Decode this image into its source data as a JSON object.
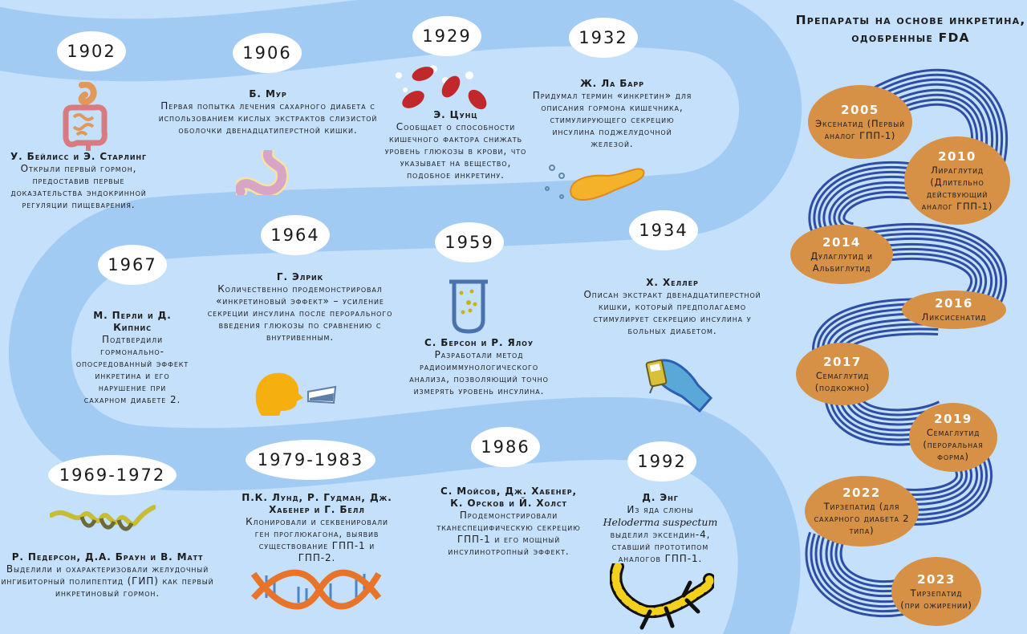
{
  "colors": {
    "background": "#c5e0fb",
    "band": "#a2cbf4",
    "year_bubble": "#ffffff",
    "drug_bubble": "#d69146",
    "stripes": "#2e4ea3"
  },
  "events": [
    {
      "year": "1902",
      "author": "У. Бейлисс и Э. Старлинг",
      "text": "Открыли первый гормон, предоставив первые доказательства эндокринной регуляции пищеварения.",
      "icon": "digestive-tract-icon"
    },
    {
      "year": "1906",
      "author": "Б. Мур",
      "text": "Первая попытка лечения сахарного диабета с использованием кислых экстрактов слизистой оболочки двенадцатиперстной кишки.",
      "icon": "stomach-icon"
    },
    {
      "year": "1929",
      "author": "Э. Цунц",
      "text": "Сообщает о способности кишечного фактора снижать уровень глюкозы в крови, что указывает на вещество, подобное инкретину.",
      "icon": "blood-cells-icon"
    },
    {
      "year": "1932",
      "author": "Ж. Ла Барр",
      "text": "Придумал термин «инкретин» для описания гормона кишечника, стимулирующего секрецию инсулина поджелудочной железой.",
      "icon": "pancreas-icon"
    },
    {
      "year": "1934",
      "author": "Х. Хеллер",
      "text": "Описан экстракт двенадцатиперстной кишки, который предполагаемо стимулирует секрецию инсулина у больных диабетом.",
      "icon": "glucometer-hand-icon"
    },
    {
      "year": "1959",
      "author": "С. Берсон и Р. Ялоу",
      "text": "Разработали метод радиоиммунологического анализа, позволяющий точно измерять уровень инсулина.",
      "icon": "test-tube-icon"
    },
    {
      "year": "1964",
      "author": "Г. Элрик",
      "text": "Количественно продемонстрировал «инкретиновый эффект» – усиление секреции инсулина после перорального введения глюкозы по сравнению с внутривенным.",
      "icon": "person-drinking-icon"
    },
    {
      "year": "1967",
      "author": "М. Перли и Д. Кипнис",
      "text": "Подтвердили гормонально-опосредованный эффект инкретина и его нарушение при сахарном диабете 2.",
      "icon": ""
    },
    {
      "year": "1969-1972",
      "author": "Р. Педерсон, Д.А. Браун и В. Матт",
      "text": "Выделили и охарактеризовали желудочный ингибиторный полипептид (ГИП) как первый инкретиновый гормон.",
      "icon": "peptide-helix-icon"
    },
    {
      "year": "1979-1983",
      "author": "П.К. Лунд, Р. Гудман, Дж. Хабенер и Г. Белл",
      "text": "Клонировали и секвенировали ген проглюкагона, выявив существование ГПП-1 и ГПП-2.",
      "icon": "dna-icon"
    },
    {
      "year": "1986",
      "author": "С. Мойсов, Дж. Хабенер, К. Орсков и Й. Холст",
      "text": "Продемонстрировали тканеспецифическую секрецию ГПП-1 и его мощный инсулинотропный эффект.",
      "icon": ""
    },
    {
      "year": "1992",
      "author": "Д. Энг",
      "text_before": "Из яда слюны",
      "species": "Heloderma suspectum",
      "text_after": "выделил эксендин-4, ставший прототипом аналогов ГПП-1.",
      "icon": "gila-monster-icon"
    }
  ],
  "fda": {
    "title": "Препараты на основе инкретина, одобренные FDA",
    "drugs": [
      {
        "year": "2005",
        "name": "Эксенатид (Первый аналог ГПП-1)"
      },
      {
        "year": "2010",
        "name": "Лираглутид (Длительно действующий аналог ГПП-1)"
      },
      {
        "year": "2014",
        "name": "Дулаглутид и Альбиглутид"
      },
      {
        "year": "2016",
        "name": "Ликсисенатид"
      },
      {
        "year": "2017",
        "name": "Семаглутид (подкожно)"
      },
      {
        "year": "2019",
        "name": "Семаглутид (пероральная форма)"
      },
      {
        "year": "2022",
        "name": "Тирзепатид (для сахарного диабета 2 типа)"
      },
      {
        "year": "2023",
        "name": "Тирзепатид (при ожирении)"
      }
    ]
  }
}
